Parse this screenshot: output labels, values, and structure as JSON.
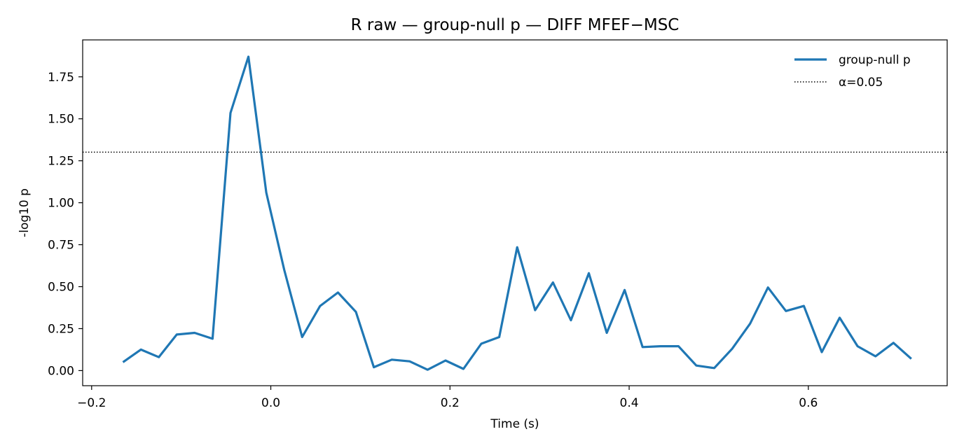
{
  "chart_data": {
    "type": "line",
    "title": "R raw — group-null p — DIFF MFEF−MSC",
    "xlabel": "Time (s)",
    "ylabel": "-log10 p",
    "xlim": [
      -0.21,
      0.755
    ],
    "ylim": [
      -0.09,
      1.97
    ],
    "x_ticks": [
      -0.2,
      0.0,
      0.2,
      0.4,
      0.6
    ],
    "x_tick_labels": [
      "−0.2",
      "0.0",
      "0.2",
      "0.4",
      "0.6"
    ],
    "y_ticks": [
      0.0,
      0.25,
      0.5,
      0.75,
      1.0,
      1.25,
      1.5,
      1.75
    ],
    "y_tick_labels": [
      "0.00",
      "0.25",
      "0.50",
      "0.75",
      "1.00",
      "1.25",
      "1.50",
      "1.75"
    ],
    "grid": false,
    "legend_position": "top-right",
    "series": [
      {
        "name": "group-null p",
        "color": "#1f77b4",
        "style": "solid",
        "x": [
          -0.165,
          -0.145,
          -0.125,
          -0.105,
          -0.085,
          -0.065,
          -0.045,
          -0.025,
          -0.005,
          0.015,
          0.035,
          0.055,
          0.075,
          0.095,
          0.115,
          0.135,
          0.155,
          0.175,
          0.195,
          0.215,
          0.235,
          0.255,
          0.275,
          0.295,
          0.315,
          0.335,
          0.355,
          0.375,
          0.395,
          0.415,
          0.435,
          0.455,
          0.475,
          0.495,
          0.515,
          0.535,
          0.555,
          0.575,
          0.595,
          0.615,
          0.635,
          0.655,
          0.675,
          0.695,
          0.715
        ],
        "values": [
          0.05,
          0.125,
          0.08,
          0.215,
          0.225,
          0.19,
          1.535,
          1.87,
          1.06,
          0.6,
          0.2,
          0.385,
          0.465,
          0.35,
          0.02,
          0.065,
          0.055,
          0.005,
          0.06,
          0.01,
          0.16,
          0.2,
          0.735,
          0.36,
          0.525,
          0.3,
          0.58,
          0.225,
          0.48,
          0.14,
          0.145,
          0.145,
          0.03,
          0.015,
          0.13,
          0.28,
          0.495,
          0.355,
          0.385,
          0.11,
          0.315,
          0.145,
          0.085,
          0.165,
          0.07
        ]
      }
    ],
    "reference_lines": [
      {
        "name": "α=0.05",
        "y": 1.301,
        "color": "#000000",
        "style": "dotted"
      }
    ]
  }
}
